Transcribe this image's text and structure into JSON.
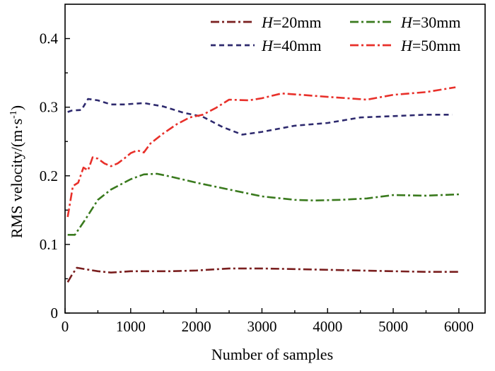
{
  "chart_data": {
    "type": "line",
    "xlabel": "Number of samples",
    "ylabel": "RMS velocity/(m·s",
    "ylabel_sup": "-1",
    "ylabel_close": ")",
    "xlim": [
      0,
      6400
    ],
    "ylim": [
      0,
      0.45
    ],
    "xticks": [
      0,
      1000,
      2000,
      3000,
      4000,
      5000,
      6000
    ],
    "yticks": [
      0,
      0.1,
      0.2,
      0.3,
      0.4
    ],
    "xtick_labels": [
      "0",
      "1000",
      "2000",
      "3000",
      "4000",
      "5000",
      "6000"
    ],
    "ytick_labels": [
      "0",
      "0.1",
      "0.2",
      "0.3",
      "0.4"
    ],
    "legend_placement": "top-right",
    "series": [
      {
        "var": "H",
        "label": "=20mm",
        "color": "#7a1f1f",
        "dash": "12,4,3,4",
        "x": [
          40,
          100,
          180,
          300,
          500,
          700,
          1000,
          1300,
          1600,
          2000,
          2500,
          3000,
          3500,
          4000,
          4500,
          5000,
          5500,
          6000
        ],
        "y": [
          0.045,
          0.055,
          0.066,
          0.064,
          0.061,
          0.059,
          0.061,
          0.061,
          0.061,
          0.062,
          0.065,
          0.065,
          0.064,
          0.063,
          0.062,
          0.061,
          0.06,
          0.06
        ]
      },
      {
        "var": "H",
        "label": "=30mm",
        "color": "#3a7a1e",
        "dash": "12,4,3,4",
        "x": [
          40,
          150,
          300,
          500,
          700,
          1000,
          1200,
          1400,
          1600,
          2000,
          2500,
          3000,
          3500,
          3800,
          4200,
          4600,
          5000,
          5500,
          6000
        ],
        "y": [
          0.114,
          0.114,
          0.135,
          0.165,
          0.18,
          0.195,
          0.202,
          0.203,
          0.199,
          0.19,
          0.18,
          0.17,
          0.165,
          0.164,
          0.165,
          0.167,
          0.172,
          0.171,
          0.173
        ]
      },
      {
        "var": "H",
        "label": "=40mm",
        "color": "#2e2a6e",
        "dash": "7,5",
        "x": [
          40,
          100,
          250,
          350,
          500,
          700,
          900,
          1200,
          1500,
          1800,
          2100,
          2400,
          2700,
          3000,
          3500,
          4000,
          4500,
          5000,
          5500,
          5900
        ],
        "y": [
          0.293,
          0.295,
          0.296,
          0.312,
          0.31,
          0.304,
          0.304,
          0.306,
          0.301,
          0.292,
          0.286,
          0.271,
          0.26,
          0.264,
          0.273,
          0.277,
          0.285,
          0.287,
          0.289,
          0.289
        ]
      },
      {
        "var": "H",
        "label": "=50mm",
        "color": "#e8302a",
        "dash": "12,4,3,4",
        "x": [
          40,
          120,
          200,
          280,
          350,
          420,
          500,
          600,
          700,
          800,
          900,
          1000,
          1100,
          1200,
          1300,
          1500,
          1700,
          1900,
          2100,
          2300,
          2500,
          2800,
          3000,
          3300,
          3600,
          4000,
          4300,
          4600,
          5000,
          5500,
          5950
        ],
        "y": [
          0.14,
          0.185,
          0.19,
          0.212,
          0.208,
          0.227,
          0.225,
          0.218,
          0.214,
          0.218,
          0.225,
          0.233,
          0.237,
          0.234,
          0.247,
          0.262,
          0.275,
          0.285,
          0.289,
          0.299,
          0.311,
          0.31,
          0.313,
          0.32,
          0.318,
          0.315,
          0.313,
          0.311,
          0.318,
          0.322,
          0.329
        ]
      }
    ]
  }
}
